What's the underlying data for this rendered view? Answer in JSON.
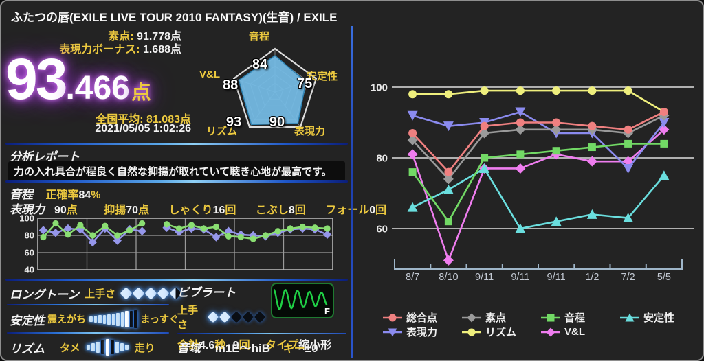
{
  "window": {
    "title": "ふたつの唇(EXILE LIVE TOUR 2010 FANTASY)(生音) / EXILE"
  },
  "score": {
    "raw_label": "素点:",
    "raw_value": "91.778点",
    "bonus_label": "表現力ボーナス:",
    "bonus_value": "1.688点",
    "total_int": "93",
    "total_frac": ".466",
    "total_unit": "点",
    "avg_label": "全国平均:",
    "avg_value": "81.083点",
    "datetime": "2021/05/05 1:02:26"
  },
  "radar": {
    "axes": [
      {
        "label": "音程",
        "value": 84
      },
      {
        "label": "安定性",
        "value": 75
      },
      {
        "label": "表現力",
        "value": 90
      },
      {
        "label": "リズム",
        "value": 93
      },
      {
        "label": "V&L",
        "value": 88
      }
    ],
    "fill_color": "#74b9e3"
  },
  "report": {
    "heading": "分析レポート",
    "text": "力の入れ具合が程良く自然な抑揚が取れていて聴き心地が最高です。"
  },
  "pitch": {
    "heading": "音程",
    "accuracy_label": "正確率",
    "accuracy_value": "84",
    "accuracy_unit": "%"
  },
  "expression": {
    "heading": "表現力",
    "score_value": "90",
    "score_unit": "点",
    "inflection_label": "抑揚",
    "inflection_value": "70",
    "inflection_unit": "点",
    "shakuri_label": "しゃくり",
    "shakuri_value": "16",
    "shakuri_unit": "回",
    "kobushi_label": "こぶし",
    "kobushi_value": "8",
    "kobushi_unit": "回",
    "fall_label": "フォール",
    "fall_value": "0",
    "fall_unit": "回"
  },
  "longtone": {
    "heading": "ロングトーン",
    "skill_label": "上手さ",
    "rating": 4.5,
    "max": 5
  },
  "vibrato": {
    "heading": "ビブラート",
    "skill_label": "上手さ",
    "rating": 2,
    "max": 5,
    "total_label": "合計",
    "total_value": "4.6",
    "total_unit": "秒",
    "count_value": "9",
    "count_unit": "回",
    "type_label": "タイプ",
    "type_value": "縮小形",
    "wave_flag": "F"
  },
  "stability": {
    "heading": "安定性",
    "left_label": "震えがち",
    "right_label": "まっすぐ",
    "bars": 11,
    "indicator": 8
  },
  "rhythm": {
    "heading": "リズム",
    "left_label": "タメ",
    "right_label": "走り",
    "bars": 9,
    "indicator": 4
  },
  "range": {
    "heading": "音域",
    "value": "m1E〜hiB",
    "key_label": "キー",
    "key_value": "±0"
  },
  "chart_data": [
    {
      "id": "score-history",
      "type": "line",
      "title": "",
      "x_labels": [
        "8/7",
        "8/10",
        "9/11",
        "9/11",
        "9/11",
        "1/2",
        "7/2",
        "5/5"
      ],
      "y_ticks": [
        100,
        80,
        60
      ],
      "ylim": [
        47,
        104
      ],
      "grid": true,
      "legend_position": "bottom",
      "series": [
        {
          "name": "総合点",
          "marker": "circle",
          "color": "#ef8080",
          "values": [
            87,
            76,
            89,
            90,
            90,
            89,
            88,
            93
          ]
        },
        {
          "name": "素点",
          "marker": "diamond",
          "color": "#9a9a9a",
          "values": [
            85,
            74,
            87,
            88,
            88,
            88,
            87,
            92
          ]
        },
        {
          "name": "音程",
          "marker": "square",
          "color": "#72d965",
          "values": [
            76,
            62,
            80,
            81,
            82,
            83,
            84,
            84
          ]
        },
        {
          "name": "安定性",
          "marker": "triangle-up",
          "color": "#6adede",
          "values": [
            66,
            71,
            77,
            60,
            62,
            64,
            63,
            75
          ]
        },
        {
          "name": "表現力",
          "marker": "triangle-down",
          "color": "#8b8bef",
          "values": [
            92,
            89,
            90,
            93,
            87,
            87,
            77,
            90
          ]
        },
        {
          "name": "リズム",
          "marker": "circle",
          "color": "#efef7d",
          "values": [
            98,
            98,
            99,
            99,
            99,
            99,
            99,
            93
          ]
        },
        {
          "name": "V&L",
          "marker": "diamond",
          "color": "#ef7def",
          "values": [
            81,
            51,
            77,
            77,
            81,
            79,
            79,
            88
          ]
        }
      ]
    },
    {
      "id": "section-pitch-expression",
      "type": "line",
      "y_ticks": [
        100,
        80,
        60,
        40
      ],
      "ylim": [
        40,
        105
      ],
      "x_count": 24,
      "grid": true,
      "series": [
        {
          "name": "series-green",
          "marker": "circle",
          "color": "#8ade72",
          "values": [
            78,
            94,
            81,
            92,
            80,
            91,
            80,
            86,
            94,
            null,
            93,
            88,
            92,
            88,
            90,
            79,
            78,
            76,
            80,
            85,
            88,
            90,
            89,
            88
          ]
        },
        {
          "name": "series-purple",
          "marker": "diamond",
          "color": "#9596ea",
          "values": [
            86,
            83,
            88,
            87,
            72,
            88,
            74,
            87,
            85,
            null,
            89,
            84,
            88,
            87,
            78,
            85,
            81,
            80,
            79,
            83,
            87,
            88,
            87,
            81
          ]
        }
      ]
    }
  ]
}
